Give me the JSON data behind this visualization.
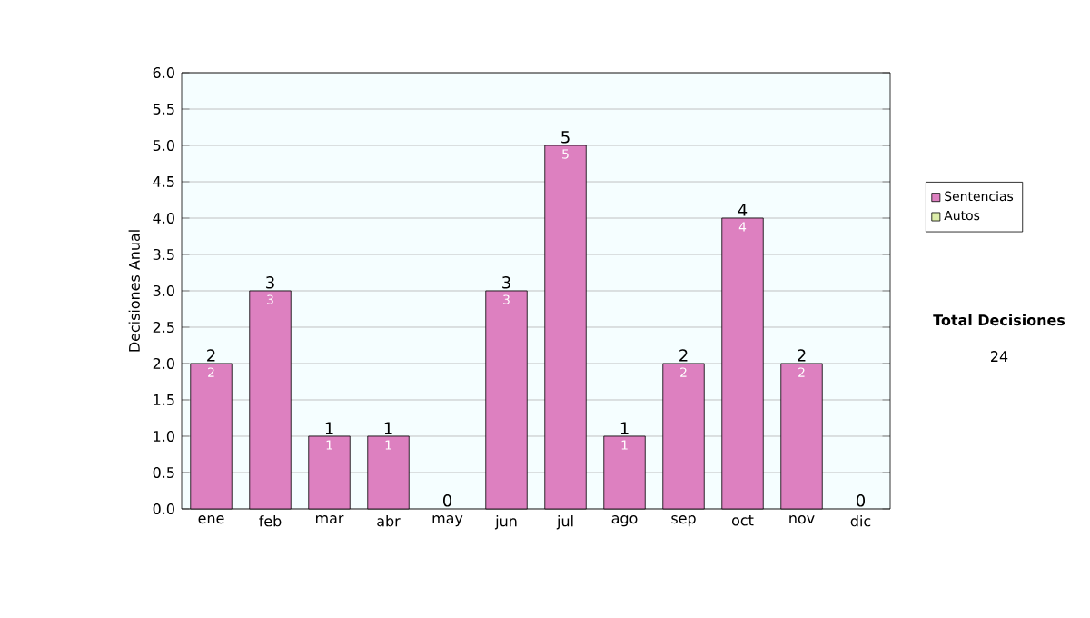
{
  "chart_data": {
    "type": "bar",
    "stacked": true,
    "ylabel": "Decisiones Anual",
    "categories": [
      "ene",
      "feb",
      "mar",
      "abr",
      "may",
      "jun",
      "jul",
      "ago",
      "sep",
      "oct",
      "nov",
      "dic"
    ],
    "series": [
      {
        "name": "Sentencias",
        "color": "#dd80c0",
        "values": [
          2,
          3,
          1,
          1,
          0,
          3,
          5,
          1,
          2,
          4,
          2,
          0
        ],
        "value_labels": [
          "2",
          "3",
          "1",
          "1",
          null,
          "3",
          "5",
          "1",
          "2",
          "4",
          "2",
          null
        ]
      },
      {
        "name": "Autos",
        "color": "#ddeeaa",
        "values": [
          0,
          0,
          0,
          0,
          0,
          0,
          0,
          0,
          0,
          0,
          0,
          0
        ]
      }
    ],
    "totals": [
      "2",
      "3",
      "1",
      "1",
      "0",
      "3",
      "5",
      "1",
      "2",
      "4",
      "2",
      "0"
    ],
    "ylim": [
      0,
      6
    ],
    "yticks": [
      {
        "value": 0,
        "label": "0.0"
      },
      {
        "value": 0.5,
        "label": "0.5"
      },
      {
        "value": 1,
        "label": "1.0"
      },
      {
        "value": 1.5,
        "label": "1.5"
      },
      {
        "value": 2,
        "label": "2.0"
      },
      {
        "value": 2.5,
        "label": "2.5"
      },
      {
        "value": 3,
        "label": "3.0"
      },
      {
        "value": 3.5,
        "label": "3.5"
      },
      {
        "value": 4,
        "label": "4.0"
      },
      {
        "value": 4.5,
        "label": "4.5"
      },
      {
        "value": 5,
        "label": "5.0"
      },
      {
        "value": 5.5,
        "label": "5.5"
      },
      {
        "value": 6,
        "label": "6.0"
      }
    ],
    "grid": "y",
    "legend": "right",
    "annotations": [
      "**Total Decisiones**",
      "24"
    ]
  }
}
